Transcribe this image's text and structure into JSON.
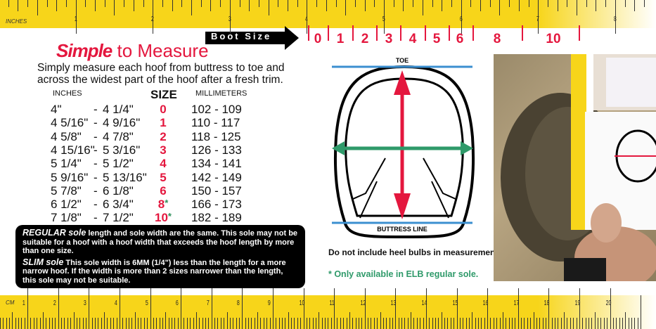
{
  "rulers": {
    "inches": {
      "unit_label": "INCHES",
      "labels": [
        "1",
        "2",
        "3",
        "4",
        "5",
        "6",
        "7",
        "8"
      ]
    },
    "cm": {
      "unit_label": "CM",
      "labels": [
        "1",
        "2",
        "3",
        "4",
        "5",
        "6",
        "7",
        "8",
        "9",
        "10",
        "11",
        "12",
        "13",
        "14",
        "15",
        "16",
        "17",
        "18",
        "19",
        "20"
      ]
    }
  },
  "boot_size": {
    "label": "Boot Size",
    "sizes": [
      "0",
      "1",
      "2",
      "3",
      "4",
      "5",
      "6",
      "8",
      "10"
    ]
  },
  "header": {
    "title_bold": "Simple",
    "title_rest": " to Measure",
    "description": "Simply measure each hoof from buttress to toe and across the widest part of the hoof after a fresh trim."
  },
  "table": {
    "headers": {
      "inches": "INCHES",
      "size": "SIZE",
      "mm": "MILLIMETERS"
    },
    "rows": [
      {
        "from": "4\"",
        "to": "4 1/4\"",
        "size": "0",
        "mm": "102 - 109",
        "asterisk": ""
      },
      {
        "from": "4 5/16\"",
        "to": "4 9/16\"",
        "size": "1",
        "mm": "110 - 117",
        "asterisk": ""
      },
      {
        "from": "4 5/8\"",
        "to": "4 7/8\"",
        "size": "2",
        "mm": "118 - 125",
        "asterisk": ""
      },
      {
        "from": "4 15/16\"",
        "to": "5 3/16\"",
        "size": "3",
        "mm": "126 - 133",
        "asterisk": ""
      },
      {
        "from": "5 1/4\"",
        "to": "5 1/2\"",
        "size": "4",
        "mm": "134 - 141",
        "asterisk": ""
      },
      {
        "from": "5 9/16\"",
        "to": "5 13/16\"",
        "size": "5",
        "mm": "142 - 149",
        "asterisk": ""
      },
      {
        "from": "5 7/8\"",
        "to": "6 1/8\"",
        "size": "6",
        "mm": "150 - 157",
        "asterisk": ""
      },
      {
        "from": "6 1/2\"",
        "to": "6 3/4\"",
        "size": "8",
        "mm": "166 - 173",
        "asterisk": "*"
      },
      {
        "from": "7 1/8\"",
        "to": "7 1/2\"",
        "size": "10",
        "mm": "182 - 189",
        "asterisk": "*"
      }
    ],
    "dash": "-"
  },
  "notes": {
    "regular_title": "REGULAR sole",
    "regular_text": " length and sole width are the same. This sole may not be suitable for a hoof with a hoof width that exceeds the hoof length by more than one size.",
    "slim_title": "SLIM sole",
    "slim_text": " This sole width is 6MM (1/4\") less than the length for a more narrow hoof. If the width is more than 2 sizes narrower than the length, this sole may not be suitable."
  },
  "diagram": {
    "toe_label": "TOE",
    "buttress_label": "BUTTRESS LINE",
    "heel_note": "Do not include heel bulbs in measurement",
    "elb_note": "* Only available in ELB regular sole."
  },
  "colors": {
    "red": "#e4173e",
    "green": "#2f9a6a",
    "blue": "#3b8fd0",
    "yellow": "#f7d51a"
  }
}
